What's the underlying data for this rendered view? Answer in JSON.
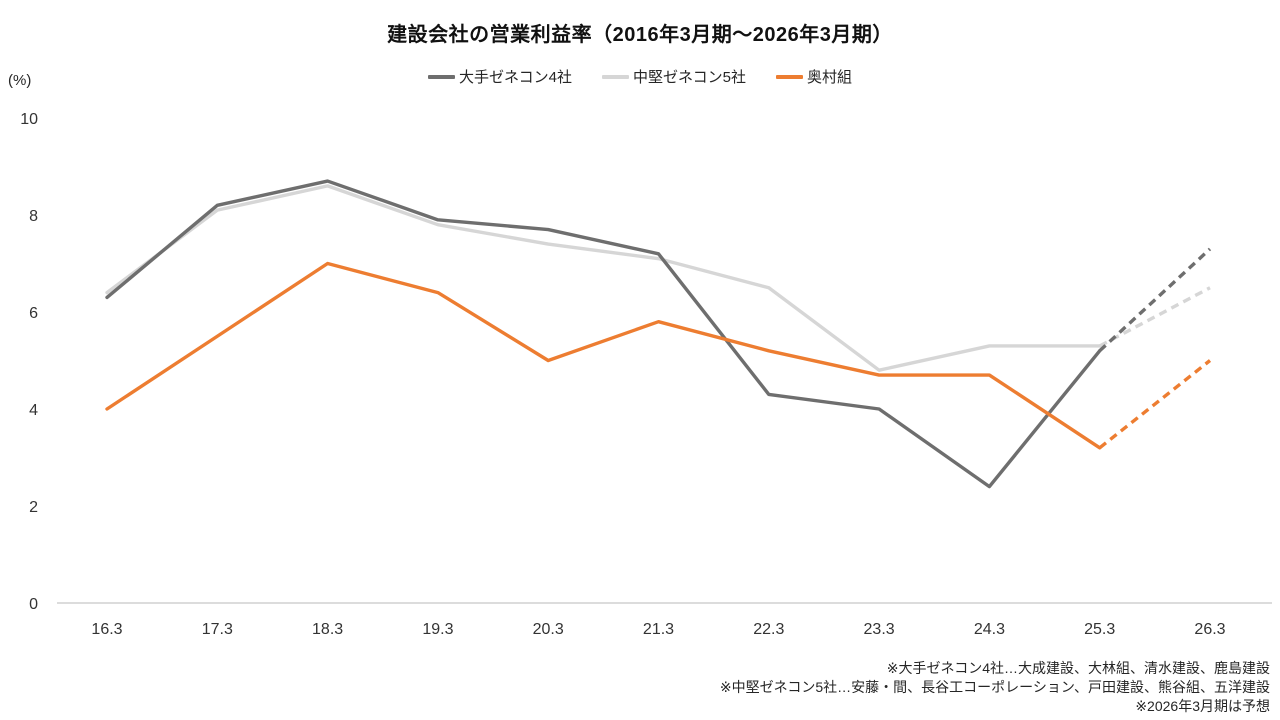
{
  "title": "建設会社の営業利益率（2016年3月期～2026年3月期）",
  "unit_label": "(%)",
  "legend": [
    {
      "label": "大手ゼネコン4社",
      "color": "#6e6e6e"
    },
    {
      "label": "中堅ゼネコン5社",
      "color": "#d6d6d6"
    },
    {
      "label": "奥村組",
      "color": "#ed7d31"
    }
  ],
  "footnotes": [
    "※大手ゼネコン4社…大成建設、大林組、清水建設、鹿島建設",
    "※中堅ゼネコン5社…安藤・間、長谷工コーポレーション、戸田建設、熊谷組、五洋建設",
    "※2026年3月期は予想"
  ],
  "chart_data": {
    "type": "line",
    "title": "建設会社の営業利益率（2016年3月期～2026年3月期）",
    "categories": [
      "16.3",
      "17.3",
      "18.3",
      "19.3",
      "20.3",
      "21.3",
      "22.3",
      "23.3",
      "24.3",
      "25.3",
      "26.3"
    ],
    "series": [
      {
        "name": "大手ゼネコン4社",
        "color": "#6e6e6e",
        "values": [
          6.3,
          8.2,
          8.7,
          7.9,
          7.7,
          7.2,
          4.3,
          4.0,
          2.4,
          5.2,
          7.3
        ]
      },
      {
        "name": "中堅ゼネコン5社",
        "color": "#d6d6d6",
        "values": [
          6.4,
          8.1,
          8.6,
          7.8,
          7.4,
          7.1,
          6.5,
          4.8,
          5.3,
          5.3,
          6.5
        ]
      },
      {
        "name": "奥村組",
        "color": "#ed7d31",
        "values": [
          4.0,
          5.5,
          7.0,
          6.4,
          5.0,
          5.8,
          5.2,
          4.7,
          4.7,
          3.2,
          5.0
        ]
      }
    ],
    "xlabel": "",
    "ylabel": "(%)",
    "ylim": [
      0,
      10
    ],
    "yticks": [
      0,
      2,
      4,
      6,
      8,
      10
    ],
    "grid": false,
    "legend_position": "top",
    "dashed_from_index": 9,
    "dashed_meaning": "2026年3月期は予想（最終区間は点線＝予想値）",
    "axis_color": "#c8c8c8",
    "tick_label_color": "#333333"
  }
}
